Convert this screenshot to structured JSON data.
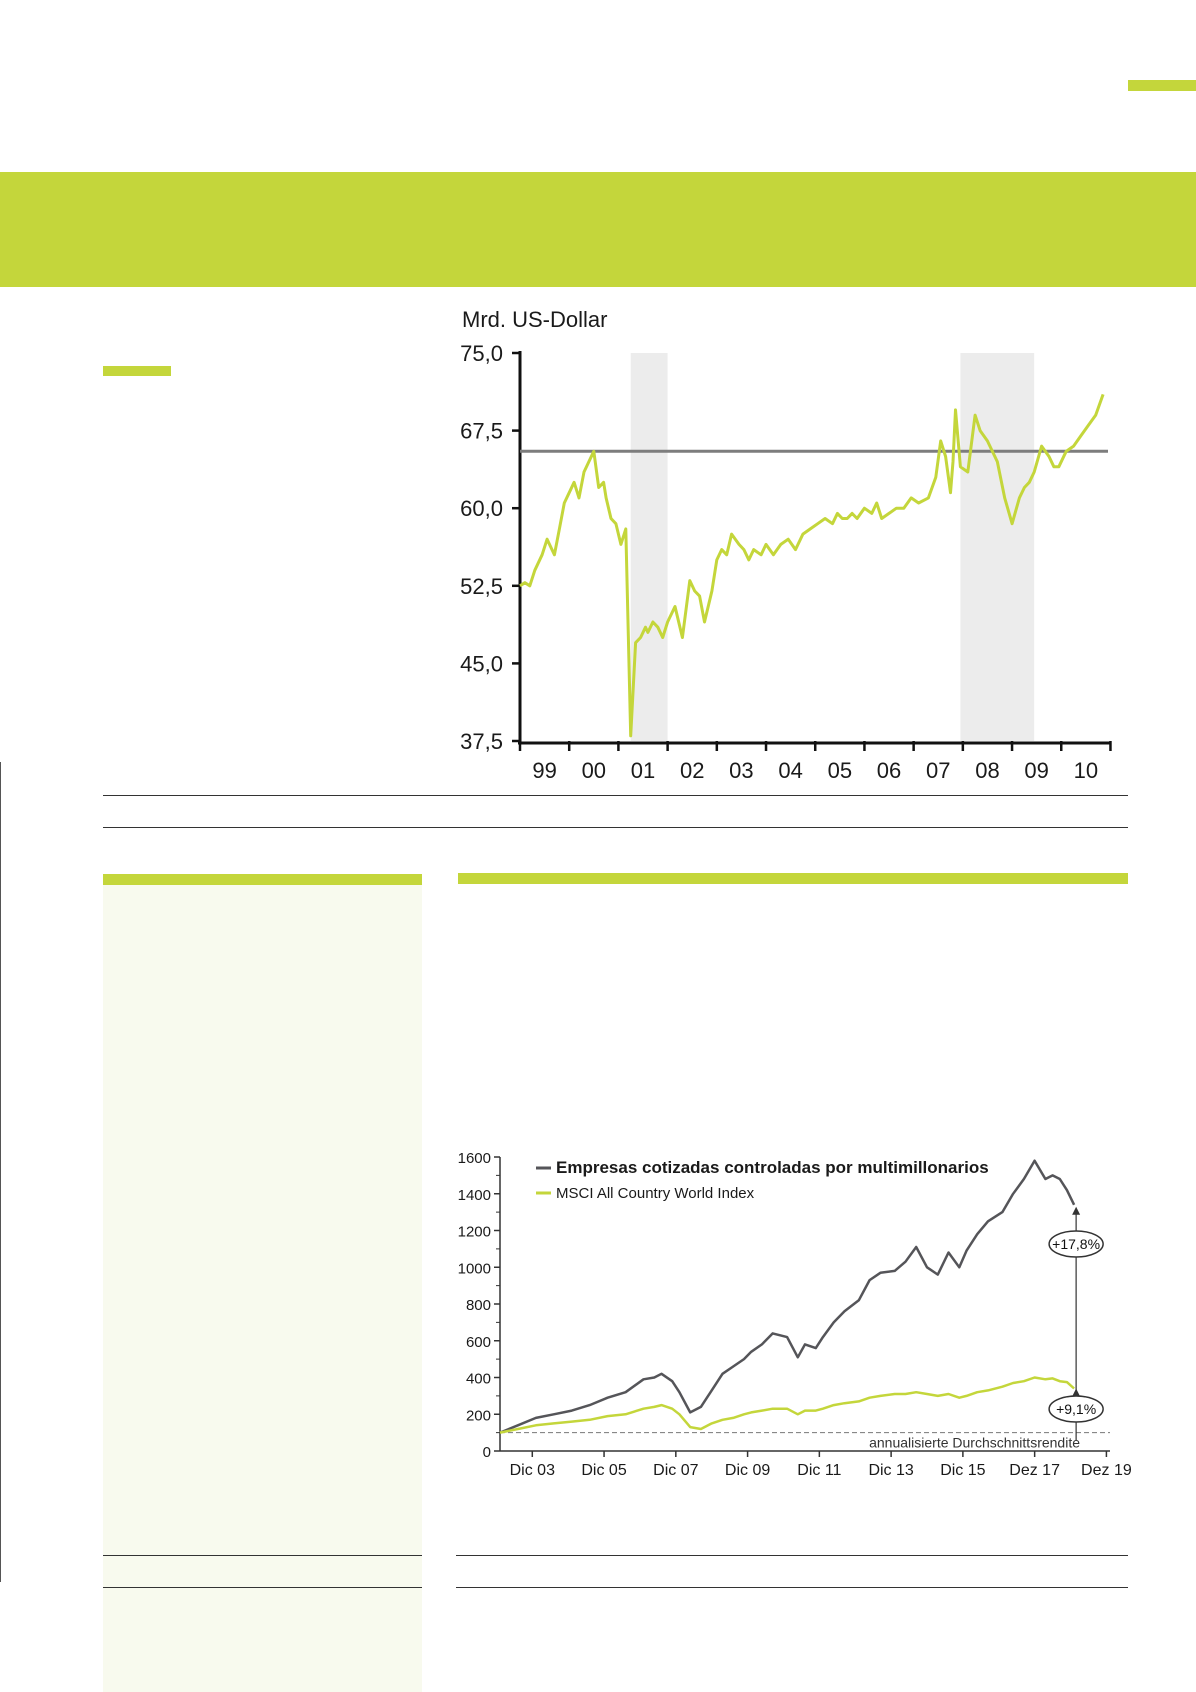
{
  "colors": {
    "accent": "#c4d63b",
    "lime_line": "#c4d63b",
    "dark_line": "#555559",
    "ref_line": "#7d7d7d",
    "shade": "#ececec",
    "pale_panel": "#f8faee"
  },
  "chart_data": [
    {
      "type": "line",
      "ylabel": "Mrd. US-Dollar",
      "ylim": [
        37.5,
        75.0
      ],
      "yticks": [
        "75,0",
        "67,5",
        "60,0",
        "52,5",
        "45,0",
        "37,5"
      ],
      "ytick_values": [
        75.0,
        67.5,
        60.0,
        52.5,
        45.0,
        37.5
      ],
      "x_categories": [
        "99",
        "00",
        "01",
        "02",
        "03",
        "04",
        "05",
        "06",
        "07",
        "08",
        "09",
        "10"
      ],
      "xlim": [
        1999.0,
        2010.95
      ],
      "reference_line": 65.5,
      "shaded_periods": [
        [
          2001.25,
          2002.0
        ],
        [
          2007.95,
          2009.45
        ]
      ],
      "series": [
        {
          "x": [
            1999.0,
            1999.1,
            1999.2,
            1999.3,
            1999.45,
            1999.55,
            1999.7,
            1999.8,
            1999.9,
            2000.0,
            2000.1,
            2000.2,
            2000.3,
            2000.4,
            2000.5,
            2000.6,
            2000.7,
            2000.75,
            2000.85,
            2000.95,
            2001.05,
            2001.15,
            2001.25,
            2001.35,
            2001.45,
            2001.55,
            2001.6,
            2001.7,
            2001.8,
            2001.9,
            2002.0,
            2002.15,
            2002.3,
            2002.45,
            2002.55,
            2002.65,
            2002.75,
            2002.9,
            2003.0,
            2003.1,
            2003.2,
            2003.3,
            2003.45,
            2003.55,
            2003.65,
            2003.75,
            2003.9,
            2004.0,
            2004.15,
            2004.3,
            2004.45,
            2004.6,
            2004.75,
            2004.9,
            2005.05,
            2005.2,
            2005.35,
            2005.45,
            2005.55,
            2005.65,
            2005.75,
            2005.85,
            2006.0,
            2006.15,
            2006.25,
            2006.35,
            2006.5,
            2006.65,
            2006.8,
            2006.95,
            2007.1,
            2007.3,
            2007.45,
            2007.55,
            2007.65,
            2007.75,
            2007.8,
            2007.85,
            2007.95,
            2008.1,
            2008.25,
            2008.35,
            2008.5,
            2008.7,
            2008.85,
            2009.0,
            2009.15,
            2009.25,
            2009.35,
            2009.45,
            2009.6,
            2009.75,
            2009.85,
            2009.95,
            2010.1,
            2010.25,
            2010.4,
            2010.55,
            2010.7,
            2010.85
          ],
          "values": [
            52.5,
            52.8,
            52.5,
            54.0,
            55.5,
            57.0,
            55.5,
            58.0,
            60.5,
            61.5,
            62.5,
            61.0,
            63.5,
            64.5,
            65.5,
            62.0,
            62.5,
            61.0,
            59.0,
            58.5,
            56.5,
            58.0,
            38.0,
            47.0,
            47.5,
            48.5,
            48.0,
            49.0,
            48.5,
            47.5,
            49.0,
            50.5,
            47.5,
            53.0,
            52.0,
            51.5,
            49.0,
            52.0,
            55.0,
            56.0,
            55.5,
            57.5,
            56.5,
            56.0,
            55.0,
            56.0,
            55.5,
            56.5,
            55.5,
            56.5,
            57.0,
            56.0,
            57.5,
            58.0,
            58.5,
            59.0,
            58.5,
            59.5,
            59.0,
            59.0,
            59.5,
            59.0,
            60.0,
            59.5,
            60.5,
            59.0,
            59.5,
            60.0,
            60.0,
            61.0,
            60.5,
            61.0,
            63.0,
            66.5,
            65.0,
            61.5,
            64.5,
            69.5,
            64.0,
            63.5,
            69.0,
            67.5,
            66.5,
            64.5,
            61.0,
            58.5,
            61.0,
            62.0,
            62.5,
            63.5,
            66.0,
            65.0,
            64.0,
            64.0,
            65.5,
            66.0,
            67.0,
            68.0,
            69.0,
            71.0
          ]
        }
      ]
    },
    {
      "type": "line",
      "ylim": [
        0,
        1600
      ],
      "yticks": [
        "1600",
        "1400",
        "1200",
        "1000",
        "800",
        "600",
        "400",
        "200",
        "0"
      ],
      "ytick_values": [
        1600,
        1400,
        1200,
        1000,
        800,
        600,
        400,
        200,
        0
      ],
      "x_categories": [
        "Dic 03",
        "Dic 05",
        "Dic 07",
        "Dic 09",
        "Dic 11",
        "Dic 13",
        "Dic 15",
        "Dez 17",
        "Dez 19"
      ],
      "xlim": [
        2003.0,
        2020.0
      ],
      "baseline": 100,
      "baseline_label": "annualisierte Durchschnittsrendite",
      "annotations": [
        "+17,8%",
        "+9,1%"
      ],
      "series": [
        {
          "name": "Empresas cotizadas controladas por multimillonarios",
          "x": [
            2003.0,
            2003.5,
            2004.0,
            2004.5,
            2005.0,
            2005.5,
            2006.0,
            2006.5,
            2007.0,
            2007.3,
            2007.5,
            2007.8,
            2008.0,
            2008.3,
            2008.6,
            2008.9,
            2009.2,
            2009.5,
            2009.8,
            2010.0,
            2010.3,
            2010.6,
            2011.0,
            2011.3,
            2011.5,
            2011.8,
            2012.0,
            2012.3,
            2012.6,
            2013.0,
            2013.3,
            2013.6,
            2014.0,
            2014.3,
            2014.6,
            2014.9,
            2015.2,
            2015.5,
            2015.8,
            2016.0,
            2016.3,
            2016.6,
            2017.0,
            2017.3,
            2017.6,
            2017.9,
            2018.2,
            2018.4,
            2018.6,
            2018.8,
            2019.0
          ],
          "values": [
            100,
            140,
            180,
            200,
            220,
            250,
            290,
            320,
            390,
            400,
            420,
            380,
            320,
            210,
            240,
            330,
            420,
            460,
            500,
            540,
            580,
            640,
            620,
            510,
            580,
            560,
            620,
            700,
            760,
            820,
            930,
            970,
            980,
            1030,
            1110,
            1000,
            960,
            1080,
            1000,
            1090,
            1180,
            1250,
            1300,
            1400,
            1480,
            1580,
            1480,
            1500,
            1480,
            1420,
            1340
          ]
        },
        {
          "name": "MSCI All Country World Index",
          "x": [
            2003.0,
            2003.5,
            2004.0,
            2004.5,
            2005.0,
            2005.5,
            2006.0,
            2006.5,
            2007.0,
            2007.3,
            2007.5,
            2007.8,
            2008.0,
            2008.3,
            2008.6,
            2008.9,
            2009.2,
            2009.5,
            2009.8,
            2010.0,
            2010.3,
            2010.6,
            2011.0,
            2011.3,
            2011.5,
            2011.8,
            2012.0,
            2012.3,
            2012.6,
            2013.0,
            2013.3,
            2013.6,
            2014.0,
            2014.3,
            2014.6,
            2014.9,
            2015.2,
            2015.5,
            2015.8,
            2016.0,
            2016.3,
            2016.6,
            2017.0,
            2017.3,
            2017.6,
            2017.9,
            2018.2,
            2018.4,
            2018.6,
            2018.8,
            2019.0
          ],
          "values": [
            100,
            120,
            140,
            150,
            160,
            170,
            190,
            200,
            230,
            240,
            250,
            230,
            200,
            130,
            120,
            150,
            170,
            180,
            200,
            210,
            220,
            230,
            230,
            200,
            220,
            220,
            230,
            250,
            260,
            270,
            290,
            300,
            310,
            310,
            320,
            310,
            300,
            310,
            290,
            300,
            320,
            330,
            350,
            370,
            380,
            400,
            390,
            395,
            380,
            375,
            340
          ]
        }
      ]
    }
  ]
}
